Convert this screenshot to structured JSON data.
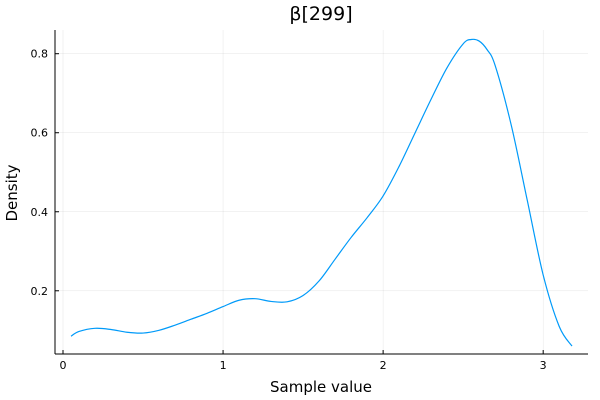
{
  "chart_data": {
    "type": "line",
    "title": "β[299]",
    "xlabel": "Sample value",
    "ylabel": "Density",
    "xlim": [
      -0.05,
      3.28
    ],
    "ylim": [
      0.04,
      0.86
    ],
    "xticks": [
      0,
      1,
      2,
      3
    ],
    "xtick_labels": [
      "0",
      "1",
      "2",
      "3"
    ],
    "yticks": [
      0.2,
      0.4,
      0.6,
      0.8
    ],
    "ytick_labels": [
      "0.2",
      "0.4",
      "0.6",
      "0.8"
    ],
    "grid": true,
    "legend": "none",
    "series": [
      {
        "color": "#009af9",
        "x": [
          0.05,
          0.1,
          0.2,
          0.3,
          0.4,
          0.5,
          0.6,
          0.7,
          0.8,
          0.9,
          1.0,
          1.1,
          1.2,
          1.3,
          1.4,
          1.5,
          1.6,
          1.7,
          1.8,
          1.9,
          2.0,
          2.1,
          2.2,
          2.3,
          2.4,
          2.5,
          2.55,
          2.6,
          2.65,
          2.7,
          2.8,
          2.9,
          3.0,
          3.1,
          3.18
        ],
        "y": [
          0.085,
          0.097,
          0.105,
          0.102,
          0.095,
          0.093,
          0.1,
          0.113,
          0.128,
          0.143,
          0.16,
          0.176,
          0.18,
          0.173,
          0.172,
          0.188,
          0.225,
          0.28,
          0.335,
          0.385,
          0.44,
          0.515,
          0.6,
          0.685,
          0.765,
          0.825,
          0.836,
          0.832,
          0.81,
          0.77,
          0.62,
          0.43,
          0.24,
          0.11,
          0.06
        ]
      }
    ]
  }
}
